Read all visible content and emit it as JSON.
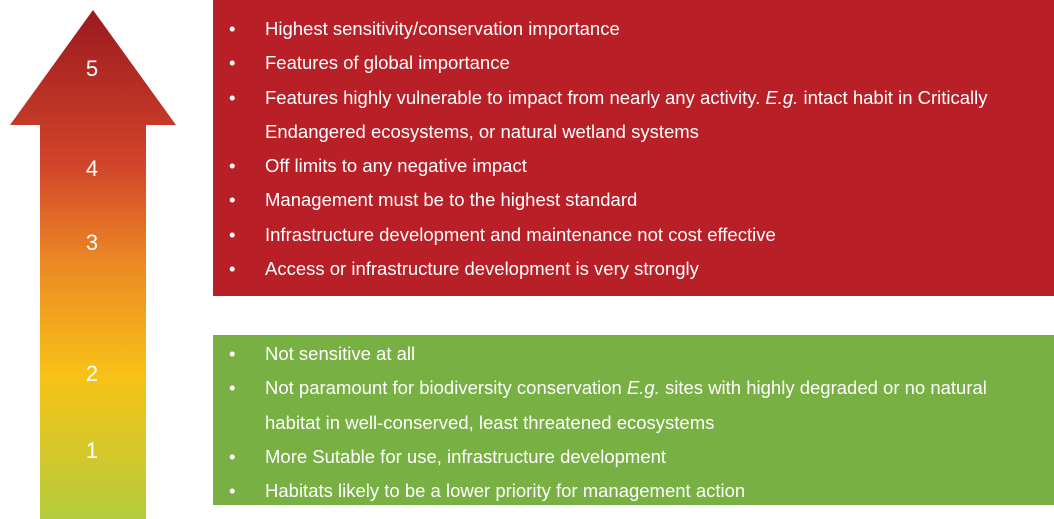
{
  "levels": [
    "5",
    "4",
    "3",
    "2",
    "1"
  ],
  "high": {
    "bullets": [
      [
        {
          "text": "Highest sensitivity/conservation importance",
          "italic": false
        }
      ],
      [
        {
          "text": "Features of global importance",
          "italic": false
        }
      ],
      [
        {
          "text": "Features highly vulnerable to impact from nearly any activity. ",
          "italic": false
        },
        {
          "text": "E.g.",
          "italic": true
        },
        {
          "text": " intact habit in Critically Endangered ecosystems, or natural wetland systems",
          "italic": false
        }
      ],
      [
        {
          "text": "Off limits to any negative impact",
          "italic": false
        }
      ],
      [
        {
          "text": "Management must be to the highest standard",
          "italic": false
        }
      ],
      [
        {
          "text": "Infrastructure development and maintenance not cost effective",
          "italic": false
        }
      ],
      [
        {
          "text": "Access or infrastructure development is very strongly",
          "italic": false
        }
      ]
    ]
  },
  "low": {
    "bullets": [
      [
        {
          "text": "Not sensitive at all",
          "italic": false
        }
      ],
      [
        {
          "text": "Not paramount for biodiversity conservation ",
          "italic": false
        },
        {
          "text": "E.g.",
          "italic": true
        },
        {
          "text": " sites with highly degraded or no natural habitat in well-conserved, least threatened ecosystems",
          "italic": false
        }
      ],
      [
        {
          "text": "More Sutable for use, infrastructure development",
          "italic": false
        }
      ],
      [
        {
          "text": "Habitats likely to be a lower priority for management action",
          "italic": false
        }
      ]
    ]
  }
}
